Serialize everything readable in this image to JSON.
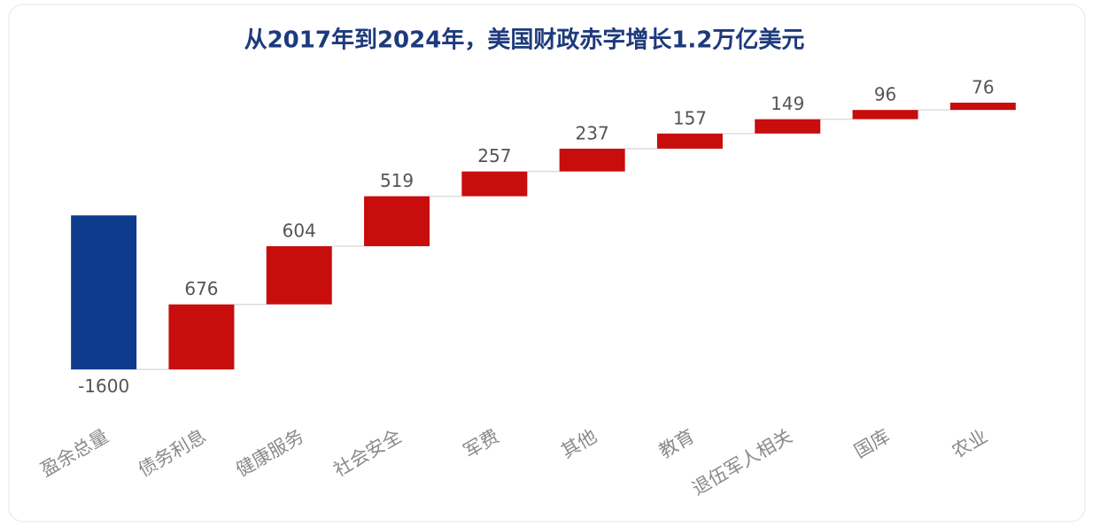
{
  "chart_data": {
    "type": "waterfall",
    "title": "从2017年到2024年，美国财政赤字增长1.2万亿美元",
    "categories": [
      "盈余总量",
      "债务利息",
      "健康服务",
      "社会安全",
      "军费",
      "其他",
      "教育",
      "退伍军人相关",
      "国库",
      "农业"
    ],
    "values": [
      -1600,
      676,
      604,
      519,
      257,
      237,
      157,
      149,
      96,
      76
    ],
    "colors": {
      "total": "#0e3a8c",
      "increase": "#c80d0d"
    },
    "ylim": [
      -1800,
      1400
    ]
  }
}
